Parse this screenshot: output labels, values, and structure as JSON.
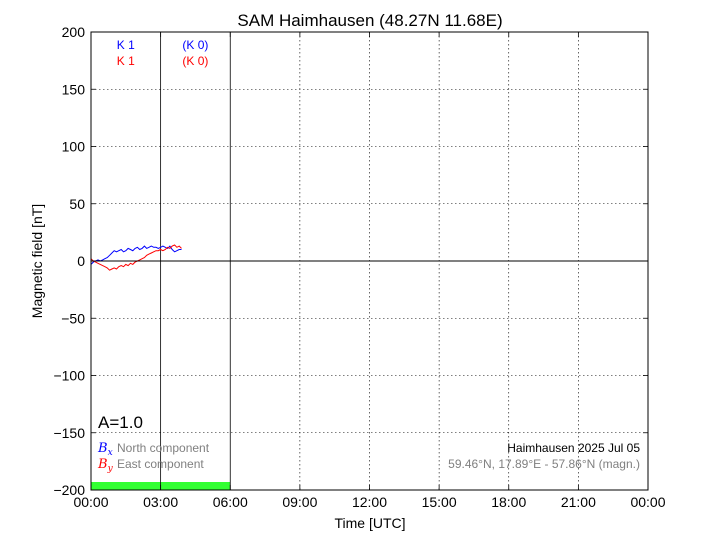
{
  "chart_data": {
    "type": "line",
    "title": "SAM Haimhausen (48.27N 11.68E)",
    "xlabel": "Time [UTC]",
    "ylabel": "Magnetic field [nT]",
    "xlim": [
      0,
      24
    ],
    "ylim": [
      -200,
      200
    ],
    "x_tick_values": [
      0,
      3,
      6,
      9,
      12,
      15,
      18,
      21,
      24
    ],
    "x_tick_labels": [
      "00:00",
      "03:00",
      "06:00",
      "09:00",
      "12:00",
      "15:00",
      "18:00",
      "21:00",
      "00:00"
    ],
    "y_tick_values": [
      -200,
      -150,
      -100,
      -50,
      0,
      50,
      100,
      150,
      200
    ],
    "y_tick_labels": [
      "−200",
      "−150",
      "−100",
      "−50",
      "0",
      "50",
      "100",
      "150",
      "200"
    ],
    "grid": true,
    "series": [
      {
        "symbol": "B",
        "subscript": "x",
        "legend": "North component",
        "color": "#0000ff",
        "x": [
          0,
          0.1,
          0.2,
          0.3,
          0.4,
          0.5,
          0.6,
          0.7,
          0.8,
          0.9,
          1.0,
          1.1,
          1.2,
          1.3,
          1.4,
          1.5,
          1.6,
          1.7,
          1.8,
          1.9,
          2.0,
          2.1,
          2.2,
          2.3,
          2.4,
          2.5,
          2.6,
          2.7,
          2.8,
          2.9,
          3.0,
          3.1,
          3.2,
          3.3,
          3.4,
          3.5,
          3.6,
          3.7,
          3.8,
          3.9
        ],
        "values": [
          -3,
          -1,
          0,
          1,
          0,
          1,
          2,
          3,
          5,
          7,
          9,
          8,
          9,
          10,
          8,
          9,
          11,
          10,
          9,
          11,
          12,
          10,
          11,
          13,
          11,
          12,
          13,
          12,
          12,
          11,
          12,
          13,
          12,
          11,
          13,
          10,
          8,
          9,
          10,
          10
        ]
      },
      {
        "symbol": "B",
        "subscript": "y",
        "legend": "East component",
        "color": "#ff0000",
        "x": [
          0,
          0.1,
          0.2,
          0.3,
          0.4,
          0.5,
          0.6,
          0.7,
          0.8,
          0.9,
          1.0,
          1.1,
          1.2,
          1.3,
          1.4,
          1.5,
          1.6,
          1.7,
          1.8,
          1.9,
          2.0,
          2.1,
          2.2,
          2.3,
          2.4,
          2.5,
          2.6,
          2.7,
          2.8,
          2.9,
          3.0,
          3.1,
          3.2,
          3.3,
          3.4,
          3.5,
          3.6,
          3.7,
          3.8,
          3.9
        ],
        "values": [
          2,
          0,
          -1,
          -2,
          -3,
          -4,
          -5,
          -6,
          -8,
          -7,
          -6,
          -7,
          -5,
          -4,
          -5,
          -3,
          -4,
          -2,
          -3,
          -1,
          0,
          1,
          2,
          3,
          5,
          6,
          7,
          8,
          9,
          9,
          10,
          9,
          10,
          12,
          11,
          13,
          14,
          12,
          13,
          11
        ]
      }
    ],
    "k_index_labels": [
      {
        "text": "K 1",
        "series": 0,
        "x": 1.5
      },
      {
        "text": "(K 0)",
        "series": 0,
        "x": 4.5
      },
      {
        "text": "K 1",
        "series": 1,
        "x": 1.5
      },
      {
        "text": "(K 0)",
        "series": 1,
        "x": 4.5
      }
    ],
    "a_index": "A=1.0",
    "station_label": "Haimhausen 2025 Jul 05",
    "coords_label": "59.46°N, 17.89°E - 57.86°N (magn.)",
    "data_coverage": {
      "start": 0,
      "end": 6,
      "color": "#33ff33"
    }
  }
}
